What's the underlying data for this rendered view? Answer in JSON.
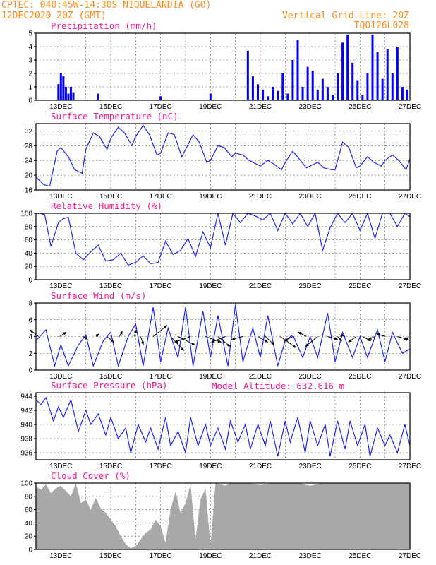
{
  "header": {
    "source_line": "CPTEC:   048:45W-14:30S   NIQUELANDIA (GO)",
    "date_line": "12DEC2020 20Z (GMT)",
    "grid_line": "Vertical Grid Line: 20Z",
    "code": "TQ0126L028",
    "model_altitude": "Model Altitude: 632.616 m"
  },
  "colors": {
    "header": "#ff8c1a",
    "title": "#ff1493",
    "series": "#2020ff",
    "cloud": "#a8a8a8"
  },
  "chart_data": [
    {
      "type": "bar",
      "title": "Precipitation (mm/h)",
      "xticks": [
        "13DEC",
        "15DEC",
        "17DEC",
        "19DEC",
        "21DEC",
        "23DEC",
        "25DEC",
        "27DEC"
      ],
      "ylim": [
        0,
        5
      ],
      "yticks": [
        "0",
        "1",
        "2",
        "3",
        "4",
        "5"
      ],
      "x": [
        0.9,
        1.0,
        1.1,
        1.2,
        1.3,
        1.4,
        1.5,
        2.5,
        5.0,
        7.0,
        8.5,
        8.7,
        8.9,
        9.1,
        9.3,
        9.5,
        9.7,
        9.9,
        10.1,
        10.3,
        10.5,
        10.7,
        10.9,
        11.1,
        11.3,
        11.5,
        11.7,
        11.9,
        12.1,
        12.3,
        12.5,
        12.7,
        12.9,
        13.1,
        13.3,
        13.5,
        13.7,
        13.9,
        14.1,
        14.3,
        14.5,
        14.7,
        14.9
      ],
      "values": [
        1.2,
        2.0,
        1.8,
        1.0,
        0.5,
        1.0,
        0.6,
        0.5,
        0.3,
        0.5,
        3.7,
        1.8,
        1.2,
        0.8,
        0.3,
        1.0,
        0.7,
        2.0,
        0.5,
        3.0,
        4.5,
        1.0,
        2.5,
        2.2,
        0.8,
        1.6,
        1.0,
        0.4,
        2.0,
        4.3,
        4.9,
        2.8,
        1.5,
        0.4,
        2.0,
        4.9,
        3.6,
        1.6,
        3.8,
        2.0,
        4.0,
        1.0,
        0.8
      ]
    },
    {
      "type": "line",
      "title": "Surface Temperature (nC)",
      "xticks": [
        "13DEC",
        "15DEC",
        "17DEC",
        "19DEC",
        "21DEC",
        "23DEC",
        "25DEC",
        "27DEC"
      ],
      "ylim": [
        16,
        34
      ],
      "yticks": [
        "16",
        "20",
        "24",
        "28",
        "32"
      ],
      "x": [
        0,
        0.3,
        0.55,
        0.85,
        1.0,
        1.3,
        1.55,
        1.85,
        2.0,
        2.3,
        2.55,
        2.85,
        3.0,
        3.3,
        3.55,
        3.85,
        4.0,
        4.3,
        4.55,
        4.85,
        5.0,
        5.3,
        5.55,
        5.85,
        6.0,
        6.3,
        6.55,
        6.85,
        7.0,
        7.3,
        7.55,
        7.85,
        8.0,
        8.3,
        8.55,
        8.85,
        9.0,
        9.3,
        9.55,
        9.85,
        10.0,
        10.3,
        10.55,
        10.85,
        11.0,
        11.3,
        11.55,
        11.85,
        12.0,
        12.3,
        12.55,
        12.85,
        13.0,
        13.3,
        13.55,
        13.85,
        14.0,
        14.3,
        14.55,
        14.85,
        15.0
      ],
      "values": [
        19.5,
        17.5,
        17.0,
        26.5,
        27.5,
        25.0,
        21.5,
        20.5,
        27.0,
        31.5,
        30.5,
        27.0,
        30.0,
        33.0,
        31.5,
        28.0,
        30.5,
        33.5,
        31.0,
        25.5,
        26.0,
        31.5,
        31.0,
        25.0,
        27.0,
        31.0,
        29.0,
        23.5,
        24.0,
        28.0,
        27.5,
        25.0,
        26.0,
        25.5,
        24.0,
        23.0,
        22.5,
        24.0,
        23.0,
        21.5,
        23.5,
        26.5,
        24.5,
        22.0,
        22.5,
        23.5,
        22.0,
        21.5,
        21.5,
        29.0,
        27.5,
        22.0,
        22.5,
        25.0,
        23.5,
        22.5,
        24.0,
        25.5,
        24.0,
        21.5,
        24.5
      ]
    },
    {
      "type": "line",
      "title": "Relative Humidity (%)",
      "xticks": [
        "13DEC",
        "15DEC",
        "17DEC",
        "19DEC",
        "21DEC",
        "23DEC",
        "25DEC",
        "27DEC"
      ],
      "ylim": [
        0,
        100
      ],
      "yticks": [
        "0",
        "20",
        "40",
        "60",
        "80",
        "100"
      ],
      "x": [
        0,
        0.15,
        0.35,
        0.6,
        0.9,
        1.1,
        1.3,
        1.6,
        1.9,
        2.2,
        2.5,
        2.8,
        3.1,
        3.4,
        3.7,
        4.0,
        4.3,
        4.6,
        4.9,
        5.2,
        5.5,
        5.8,
        6.1,
        6.4,
        6.7,
        7.0,
        7.3,
        7.6,
        7.9,
        8.2,
        8.5,
        8.8,
        9.1,
        9.4,
        9.7,
        10.0,
        10.3,
        10.6,
        10.9,
        11.2,
        11.5,
        11.8,
        12.1,
        12.4,
        12.7,
        13.0,
        13.3,
        13.6,
        13.9,
        14.2,
        14.5,
        14.8,
        15.0
      ],
      "values": [
        100,
        100,
        98,
        50,
        86,
        92,
        94,
        40,
        30,
        42,
        52,
        28,
        30,
        40,
        22,
        26,
        36,
        24,
        26,
        58,
        38,
        44,
        62,
        35,
        72,
        48,
        100,
        52,
        100,
        86,
        100,
        96,
        90,
        100,
        74,
        100,
        84,
        100,
        80,
        100,
        44,
        78,
        100,
        86,
        100,
        74,
        100,
        62,
        100,
        100,
        80,
        100,
        95
      ]
    },
    {
      "type": "line",
      "title": "Surface Wind (m/s)",
      "xticks": [
        "13DEC",
        "15DEC",
        "17DEC",
        "19DEC",
        "21DEC",
        "23DEC",
        "25DEC",
        "27DEC"
      ],
      "ylim": [
        0,
        8
      ],
      "yticks": [
        "0",
        "2",
        "4",
        "6",
        "8"
      ],
      "x": [
        0,
        0.4,
        0.75,
        1.0,
        1.3,
        1.7,
        2.0,
        2.3,
        2.7,
        3.0,
        3.3,
        3.7,
        4.0,
        4.3,
        4.7,
        5.0,
        5.3,
        5.7,
        6.0,
        6.3,
        6.7,
        7.0,
        7.3,
        7.7,
        8.0,
        8.3,
        8.7,
        9.0,
        9.3,
        9.7,
        10.0,
        10.3,
        10.7,
        11.0,
        11.3,
        11.7,
        12.0,
        12.3,
        12.7,
        13.0,
        13.3,
        13.7,
        14.0,
        14.3,
        14.7,
        15.0
      ],
      "values": [
        3.5,
        4.8,
        0.5,
        3.0,
        0.5,
        3.0,
        4.2,
        0.5,
        3.5,
        4.5,
        0.5,
        4.0,
        5.5,
        0.5,
        7.5,
        1.0,
        5.0,
        1.5,
        7.5,
        0.5,
        7.0,
        1.5,
        6.5,
        0.5,
        7.8,
        1.0,
        5.0,
        1.5,
        6.5,
        0.5,
        3.5,
        4.2,
        1.5,
        4.0,
        1.5,
        6.8,
        1.0,
        4.5,
        1.5,
        4.0,
        1.5,
        4.8,
        1.0,
        4.5,
        2.0,
        2.5
      ],
      "vectors": {
        "x": [
          0.1,
          0.95,
          1.9,
          2.4,
          2.85,
          3.35,
          3.95,
          4.2,
          4.7,
          5.4,
          5.7,
          6.2,
          6.8,
          7.3,
          7.6,
          8.3,
          8.9,
          9.2,
          9.8,
          10.3,
          10.85,
          11.3,
          11.7,
          12.1,
          12.4,
          12.85,
          13.1,
          13.6,
          14.0,
          14.5,
          14.95
        ],
        "u": [
          -1.5,
          1.2,
          0.8,
          0.6,
          1.2,
          0.5,
          0.3,
          0.5,
          2.5,
          2.4,
          3.0,
          -2.8,
          2.8,
          2.2,
          -2.5,
          -2.0,
          1.8,
          1.6,
          2.8,
          -1.5,
          -1.5,
          -2.2,
          1.8,
          0.8,
          -1.0,
          -1.4,
          1.5,
          -1.2,
          -1.5,
          1.8,
          -0.5
        ],
        "v": [
          1.2,
          0.8,
          -0.5,
          0.5,
          -1.0,
          1.0,
          1.2,
          -1.5,
          2.0,
          -2.5,
          -1.5,
          -1.0,
          -1.0,
          -1.8,
          -1.0,
          -0.5,
          -1.0,
          -1.5,
          -2.0,
          -0.8,
          0.8,
          -1.8,
          -0.5,
          -0.8,
          0.3,
          -1.0,
          -0.8,
          -0.5,
          0.5,
          -0.5,
          -0.8
        ]
      }
    },
    {
      "type": "line",
      "title": "Surface Pressure (hPa)",
      "xticks": [
        "13DEC",
        "15DEC",
        "17DEC",
        "19DEC",
        "21DEC",
        "23DEC",
        "25DEC",
        "27DEC"
      ],
      "ylim": [
        935,
        944.5
      ],
      "yticks": [
        "936",
        "938",
        "940",
        "942",
        "944"
      ],
      "x": [
        0,
        0.2,
        0.4,
        0.7,
        0.9,
        1.1,
        1.4,
        1.7,
        2.0,
        2.2,
        2.5,
        2.8,
        3.0,
        3.3,
        3.6,
        3.8,
        4.1,
        4.4,
        4.6,
        4.9,
        5.2,
        5.4,
        5.7,
        6.0,
        6.2,
        6.5,
        6.8,
        7.0,
        7.3,
        7.6,
        7.8,
        8.1,
        8.4,
        8.6,
        8.9,
        9.2,
        9.4,
        9.7,
        10.0,
        10.2,
        10.5,
        10.8,
        11.0,
        11.3,
        11.6,
        11.8,
        12.1,
        12.4,
        12.6,
        12.9,
        13.2,
        13.4,
        13.7,
        14.0,
        14.2,
        14.5,
        14.8,
        15.0
      ],
      "values": [
        943.5,
        942.8,
        943.8,
        940.5,
        942.5,
        941.0,
        943.5,
        939.0,
        942.0,
        940.0,
        941.5,
        938.5,
        941.0,
        938.0,
        939.5,
        936.0,
        940.0,
        937.5,
        939.5,
        936.5,
        941.0,
        937.0,
        939.0,
        936.0,
        941.0,
        937.0,
        940.0,
        937.0,
        939.5,
        936.5,
        940.5,
        937.5,
        940.0,
        936.5,
        940.0,
        937.0,
        940.5,
        935.5,
        940.5,
        937.5,
        941.0,
        936.0,
        940.5,
        937.0,
        940.0,
        935.5,
        940.5,
        936.5,
        940.5,
        937.0,
        940.0,
        935.5,
        939.5,
        937.0,
        938.5,
        936.0,
        940.0,
        937.0
      ]
    },
    {
      "type": "area",
      "title": "Cloud Cover (%)",
      "xticks": [
        "13DEC",
        "15DEC",
        "17DEC",
        "19DEC",
        "21DEC",
        "23DEC",
        "25DEC",
        "27DEC"
      ],
      "ylim": [
        0,
        100
      ],
      "yticks": [
        "0",
        "20",
        "40",
        "60",
        "80",
        "100"
      ],
      "x": [
        0,
        0.2,
        0.4,
        0.6,
        0.8,
        1.0,
        1.2,
        1.4,
        1.6,
        1.8,
        2.0,
        2.2,
        2.4,
        2.6,
        2.8,
        3.0,
        3.2,
        3.4,
        3.6,
        3.8,
        4.0,
        4.2,
        4.4,
        4.6,
        4.8,
        5.0,
        5.2,
        5.4,
        5.6,
        5.8,
        6.0,
        6.2,
        6.4,
        6.6,
        6.8,
        7.0,
        7.2,
        7.4,
        7.6,
        7.8,
        8.0,
        8.5,
        9.0,
        9.5,
        10.0,
        10.5,
        11.0,
        11.5,
        12.0,
        12.5,
        13.0,
        13.5,
        14.0,
        14.5,
        15.0
      ],
      "values": [
        95,
        90,
        98,
        85,
        92,
        96,
        88,
        80,
        100,
        70,
        75,
        60,
        78,
        62,
        55,
        45,
        35,
        20,
        8,
        2,
        5,
        15,
        25,
        30,
        45,
        35,
        10,
        60,
        88,
        55,
        70,
        98,
        15,
        75,
        92,
        5,
        100,
        98,
        96,
        100,
        100,
        100,
        97,
        100,
        100,
        100,
        96,
        100,
        100,
        100,
        100,
        100,
        100,
        100,
        100
      ]
    }
  ]
}
